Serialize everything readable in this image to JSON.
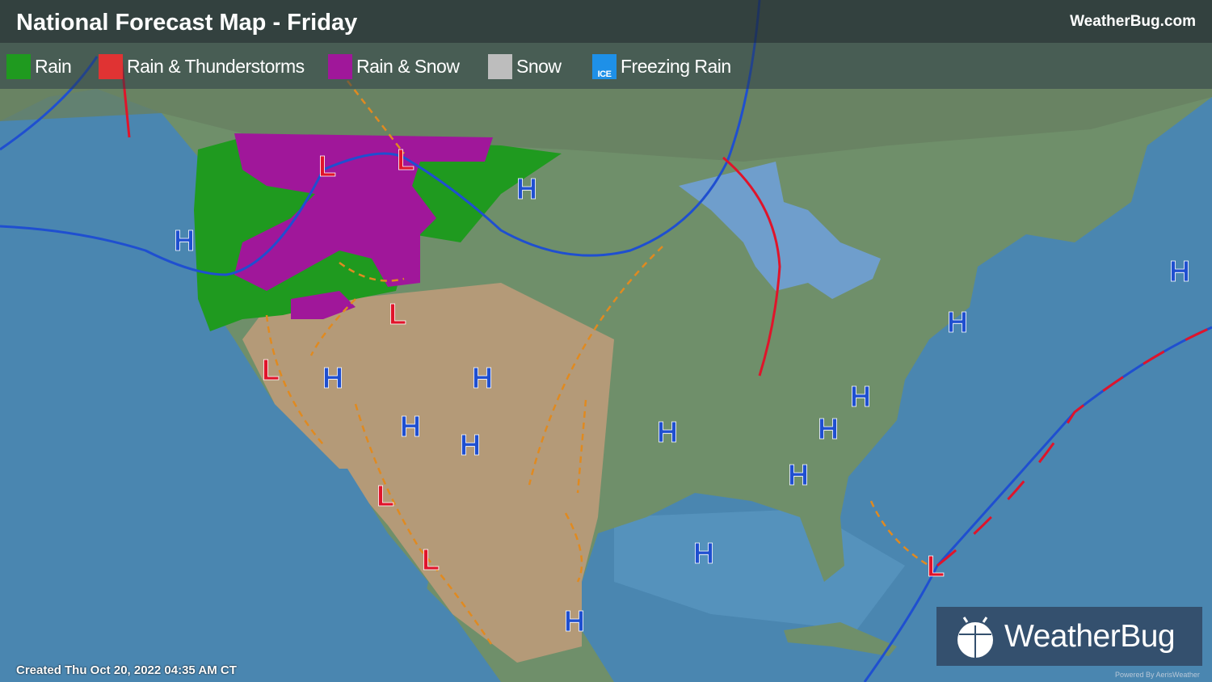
{
  "header": {
    "title": "National Forecast Map - Friday",
    "site": "WeatherBug.com"
  },
  "legend": [
    {
      "label": "Rain",
      "color": "#1f9a1f",
      "icon": "rain-drops-icon"
    },
    {
      "label": "Rain & Thunderstorms",
      "color": "#e03333",
      "icon": "lightning-icon"
    },
    {
      "label": "Rain & Snow",
      "color": "#a0179a",
      "icon": "snowflake-icon"
    },
    {
      "label": "Snow",
      "color": "#bdbdbd",
      "icon": "snowflake-icon"
    },
    {
      "label": "Freezing Rain",
      "color": "#1e90e8",
      "icon": "ice-icon",
      "badge": "ICE"
    }
  ],
  "colors": {
    "ocean": "#4a86b0",
    "land": "#6f8f6a",
    "desert": "#b49a78",
    "high": "#1f4fd0",
    "low": "#e0142a",
    "cold_front": "#1f4fd0",
    "warm_front": "#e0142a",
    "trough": "#e08a20"
  },
  "pressure_labels": {
    "high": "H",
    "low": "L"
  },
  "footer": {
    "created": "Created Thu Oct 20, 2022 04:35 AM CT",
    "brand": "WeatherBug",
    "powered": "Powered By AerisWeather"
  }
}
